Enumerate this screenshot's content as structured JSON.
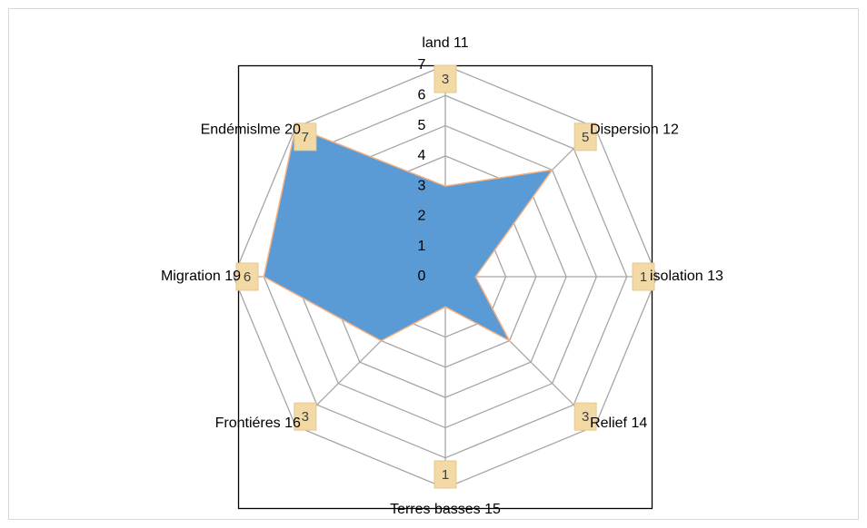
{
  "chart_data": {
    "type": "radar",
    "categories": [
      "land 11",
      "Dispersion 12",
      "isolation 13",
      "Relief 14",
      "Terres basses 15",
      "Frontiéres 16",
      "Migration 19",
      "Endémislme 20"
    ],
    "values": [
      3,
      5,
      1,
      3,
      1,
      3,
      6,
      7
    ],
    "color": "#5b9bd5",
    "rlim": [
      0,
      7
    ],
    "rticks": [
      0,
      1,
      2,
      3,
      4,
      5,
      6,
      7
    ],
    "grid": true
  }
}
